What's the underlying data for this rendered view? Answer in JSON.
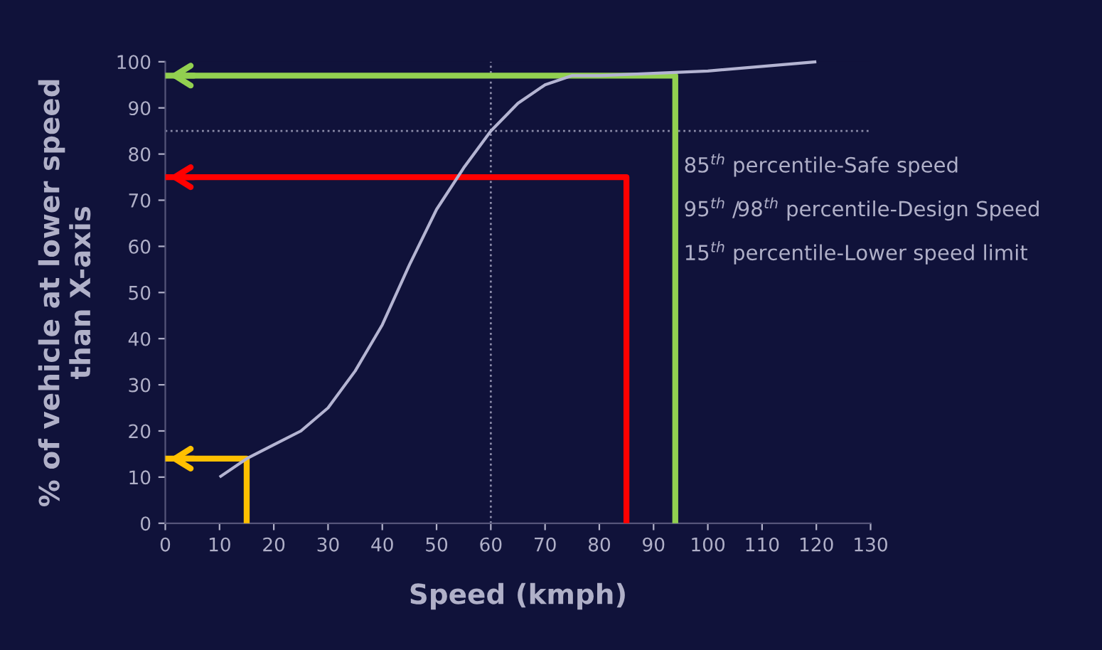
{
  "chart_data": {
    "type": "line",
    "xlabel": "Speed (kmph)",
    "ylabel": "% of vehicle at lower speed\nthan X-axis",
    "series": [
      {
        "color": "#b4b4d2",
        "x": [
          10,
          15,
          20,
          25,
          30,
          35,
          40,
          45,
          50,
          55,
          60,
          65,
          70,
          75,
          80,
          90,
          100,
          110,
          120
        ],
        "values": [
          10,
          14,
          17,
          20,
          25,
          33,
          43,
          56,
          68,
          77,
          85,
          91,
          95,
          97,
          97,
          97.5,
          98,
          99,
          100
        ]
      },
      {
        "color": "#92d050",
        "x": [
          94,
          94,
          0
        ],
        "values": [
          0,
          97,
          97
        ]
      },
      {
        "color": "#ff0000",
        "x": [
          85,
          85,
          0
        ],
        "values": [
          0,
          75,
          75
        ]
      },
      {
        "color": "#ffc000",
        "x": [
          15,
          15,
          0
        ],
        "values": [
          0,
          14,
          14
        ]
      }
    ],
    "ref_lines": [
      {
        "axis": "x",
        "value": 60,
        "color": "#8a8aa8",
        "line_style": "dotted"
      },
      {
        "axis": "y",
        "value": 85,
        "color": "#8a8aa8",
        "line_style": "dotted"
      }
    ],
    "annotations": [
      "85$^{th}$ percentile-Safe speed",
      "95$^{th}$ /98$^{th}$ percentile-Design Speed",
      "15$^{th}$ percentile-Lower speed limit"
    ],
    "xlim": [
      0,
      130
    ],
    "xticks": [
      0,
      10,
      20,
      30,
      40,
      50,
      60,
      70,
      80,
      90,
      100,
      110,
      120,
      130
    ],
    "ylim": [
      0,
      100
    ],
    "yticks": [
      0,
      10,
      20,
      30,
      40,
      50,
      60,
      70,
      80,
      90,
      100
    ],
    "grid": false,
    "legend": false,
    "marker": "none",
    "line_style": "solid"
  }
}
